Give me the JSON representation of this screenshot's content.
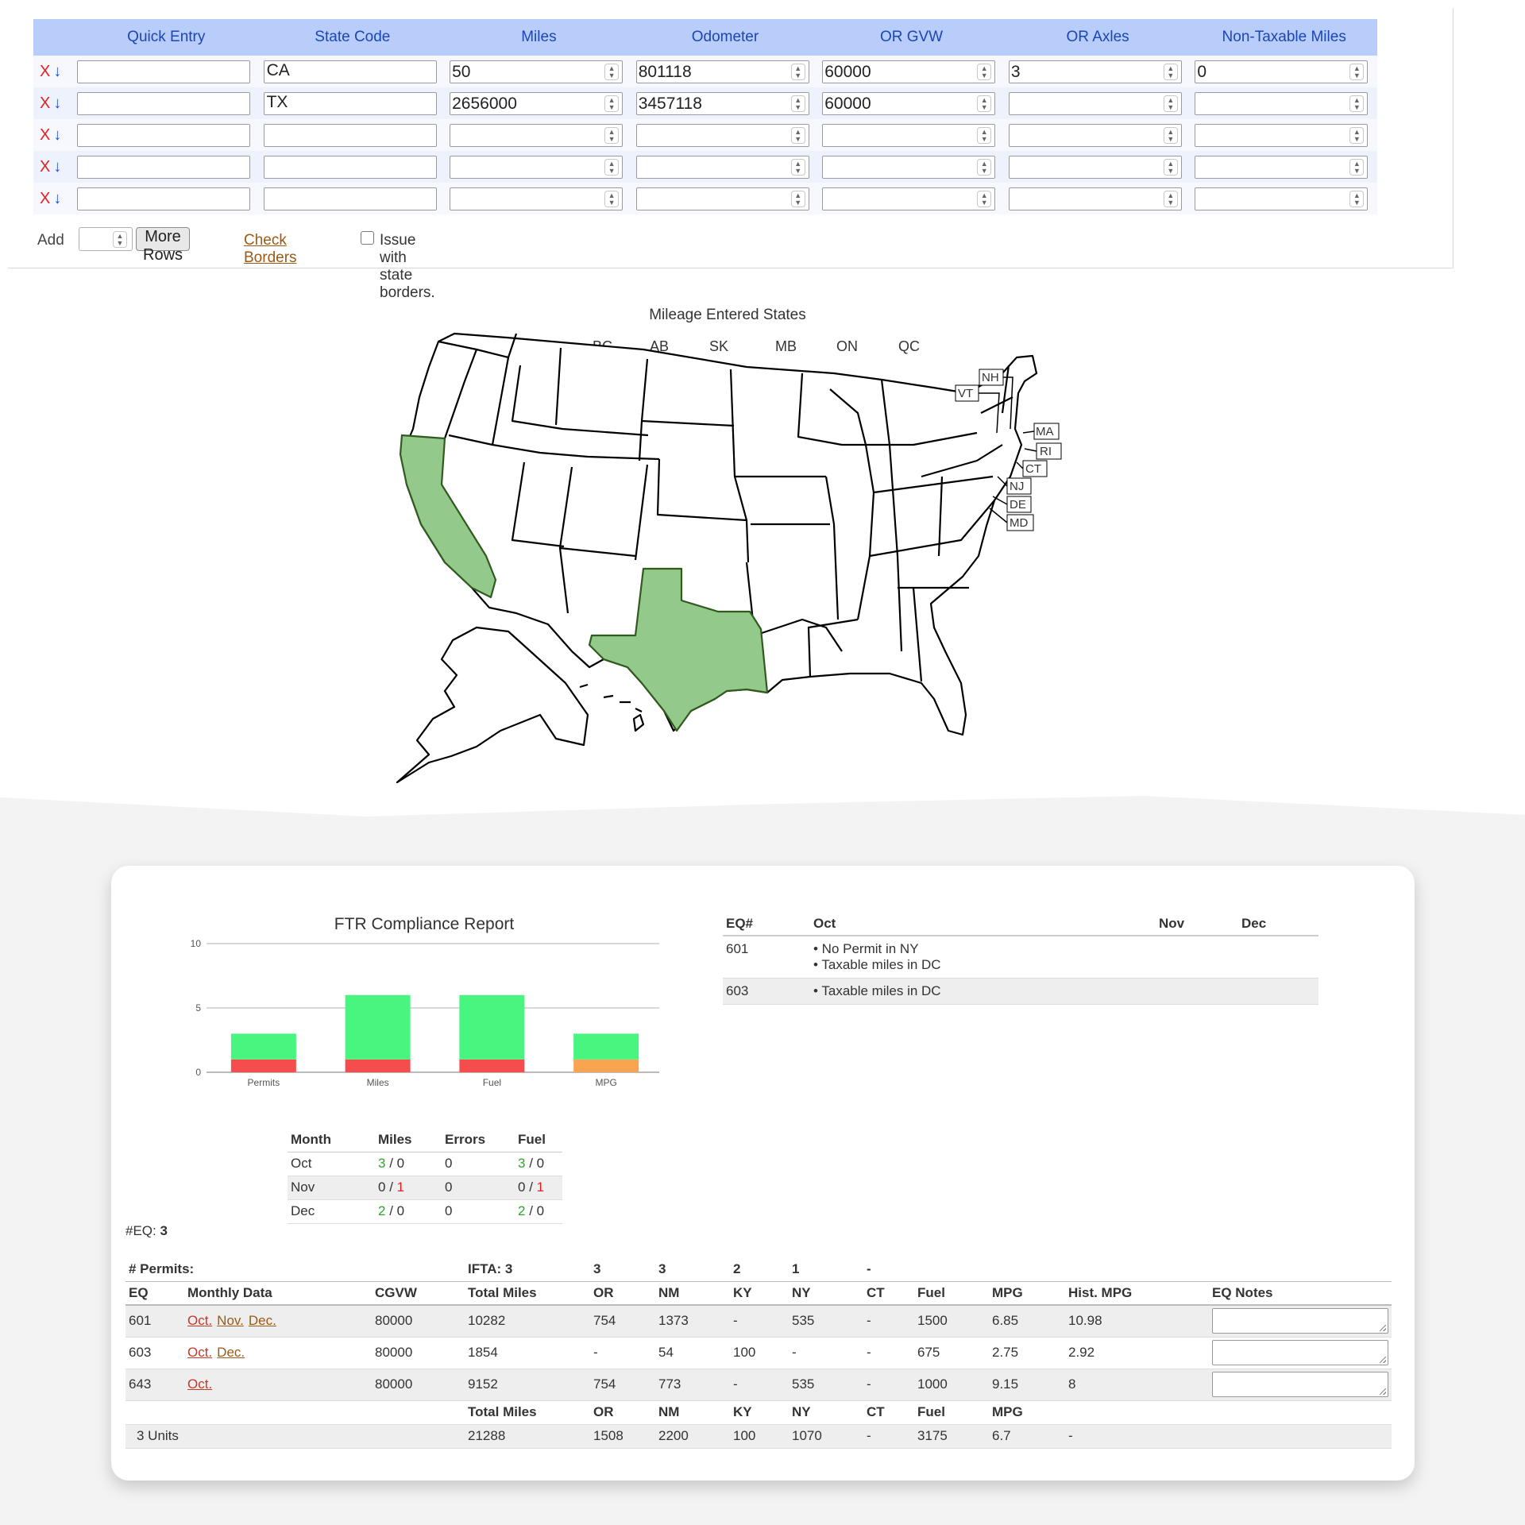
{
  "entry": {
    "headers": [
      "Quick Entry",
      "State Code",
      "Miles",
      "Odometer",
      "OR GVW",
      "OR Axles",
      "Non-Taxable Miles"
    ],
    "rows": [
      {
        "quick": "",
        "state": "CA",
        "miles": "50",
        "odometer": "801118",
        "gvw": "60000",
        "axles": "3",
        "nontax": "0"
      },
      {
        "quick": "",
        "state": "TX",
        "miles": "2656000",
        "odometer": "3457118",
        "gvw": "60000",
        "axles": "",
        "nontax": ""
      },
      {
        "quick": "",
        "state": "",
        "miles": "",
        "odometer": "",
        "gvw": "",
        "axles": "",
        "nontax": ""
      },
      {
        "quick": "",
        "state": "",
        "miles": "",
        "odometer": "",
        "gvw": "",
        "axles": "",
        "nontax": ""
      },
      {
        "quick": "",
        "state": "",
        "miles": "",
        "odometer": "",
        "gvw": "",
        "axles": "",
        "nontax": ""
      }
    ],
    "remove_glyph": "X",
    "move_glyph": "↓",
    "add_label": "Add",
    "add_count": "",
    "more_rows_label": "More Rows",
    "check_borders_label": "Check Borders",
    "border_issue_label": "Issue with state borders.",
    "border_issue_checked": false
  },
  "map": {
    "title": "Mileage Entered States",
    "canada_labels": [
      "BC",
      "AB",
      "SK",
      "MB",
      "ON",
      "QC"
    ],
    "northeast_labels": [
      "NH",
      "VT",
      "MA",
      "RI",
      "CT",
      "NJ",
      "DE",
      "MD"
    ],
    "highlighted_states": [
      "CA",
      "TX"
    ],
    "highlight_color": "#93c98a"
  },
  "report": {
    "chart_data": {
      "type": "bar",
      "title": "FTR Compliance Report",
      "categories": [
        "Permits",
        "Miles",
        "Fuel",
        "MPG"
      ],
      "ylim": [
        0,
        10
      ],
      "yticks": [
        "0",
        "5",
        "10"
      ],
      "stacked": true,
      "series": [
        {
          "values": [
            1,
            1,
            1,
            1
          ],
          "colors": [
            "#f54d4d",
            "#f54d4d",
            "#f54d4d",
            "#f7a550"
          ]
        },
        {
          "values": [
            2,
            5,
            5,
            2
          ],
          "color": "#48f57e"
        }
      ],
      "grid": true
    },
    "notes": {
      "headers": [
        "EQ#",
        "Oct",
        "Nov",
        "Dec"
      ],
      "rows": [
        {
          "eq": "601",
          "oct": [
            "• No Permit in NY",
            "• Taxable miles in DC"
          ],
          "nov": "",
          "dec": ""
        },
        {
          "eq": "603",
          "oct": [
            "• Taxable miles in DC"
          ],
          "nov": "",
          "dec": ""
        }
      ]
    },
    "months": {
      "headers": [
        "Month",
        "Miles",
        "Errors",
        "Fuel"
      ],
      "rows": [
        {
          "month": "Oct",
          "miles_a": "3",
          "miles_b": "0",
          "errors": "0",
          "fuel_a": "3",
          "fuel_b": "0"
        },
        {
          "month": "Nov",
          "miles_a": "0",
          "miles_b": "1",
          "errors": "0",
          "fuel_a": "0",
          "fuel_b": "1"
        },
        {
          "month": "Dec",
          "miles_a": "2",
          "miles_b": "0",
          "errors": "0",
          "fuel_a": "2",
          "fuel_b": "0"
        }
      ]
    },
    "eq_label": "#EQ:",
    "eq_count": "3",
    "permits": {
      "label": "# Permits:",
      "ifta_label": "IFTA:",
      "values": [
        "3",
        "3",
        "3",
        "2",
        "1",
        "-"
      ]
    },
    "main_headers": [
      "EQ",
      "Monthly Data",
      "CGVW",
      "Total Miles",
      "OR",
      "NM",
      "KY",
      "NY",
      "CT",
      "Fuel",
      "MPG",
      "Hist. MPG",
      "EQ Notes"
    ],
    "units": [
      {
        "eq": "601",
        "links": [
          "Oct.",
          "Nov.",
          "Dec."
        ],
        "cgvw": "80000",
        "total": "10282",
        "or": "754",
        "nm": "1373",
        "ky": "-",
        "ny": "535",
        "ct": "-",
        "fuel": "1500",
        "mpg": "6.85",
        "hist": "10.98",
        "notes": ""
      },
      {
        "eq": "603",
        "links": [
          "Oct.",
          "Dec."
        ],
        "cgvw": "80000",
        "total": "1854",
        "or": "-",
        "nm": "54",
        "ky": "100",
        "ny": "-",
        "ct": "-",
        "fuel": "675",
        "mpg": "2.75",
        "hist": "2.92",
        "notes": ""
      },
      {
        "eq": "643",
        "links": [
          "Oct."
        ],
        "cgvw": "80000",
        "total": "9152",
        "or": "754",
        "nm": "773",
        "ky": "-",
        "ny": "535",
        "ct": "-",
        "fuel": "1000",
        "mpg": "9.15",
        "hist": "8",
        "notes": ""
      }
    ],
    "footer_headers": [
      "Total Miles",
      "OR",
      "NM",
      "KY",
      "NY",
      "CT",
      "Fuel",
      "MPG"
    ],
    "totals": {
      "units": "3 Units",
      "total": "21288",
      "or": "1508",
      "nm": "2200",
      "ky": "100",
      "ny": "1070",
      "ct": "-",
      "fuel": "3175",
      "mpg": "6.7",
      "hist": "-"
    }
  }
}
